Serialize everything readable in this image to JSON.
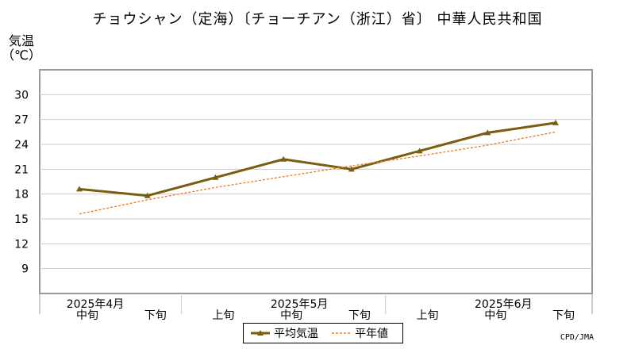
{
  "header": {
    "title": "チョウシャン（定海）〔チョーチアン（浙江）省〕 中華人民共和国"
  },
  "axes": {
    "ylabel_line1": "気温",
    "ylabel_line2": "（℃）"
  },
  "footer": {
    "credit": "CPD/JMA"
  },
  "legend": {
    "avg_label": "平均気温",
    "normal_label": "平年値"
  },
  "colors": {
    "avg_line": "#7a5d10",
    "normal_line": "#f07a1e",
    "grid": "#cccccc",
    "frame": "#999999"
  },
  "chart_data": {
    "type": "line",
    "ylim": [
      6,
      33
    ],
    "yticks": [
      9,
      12,
      15,
      18,
      21,
      24,
      27,
      30
    ],
    "categories": [
      "中旬",
      "下旬",
      "上旬",
      "中旬",
      "下旬",
      "上旬",
      "中旬",
      "下旬"
    ],
    "month_labels": [
      {
        "label": "2025年4月",
        "index": 0
      },
      {
        "label": "2025年5月",
        "index": 3
      },
      {
        "label": "2025年6月",
        "index": 6
      }
    ],
    "grid": true,
    "legend_position": "bottom-center",
    "series": [
      {
        "name": "平均気温",
        "style": "solid-marker",
        "values": [
          18.6,
          17.8,
          20.0,
          22.2,
          21.0,
          23.2,
          25.4,
          26.6
        ]
      },
      {
        "name": "平年値",
        "style": "dashed",
        "values": [
          15.6,
          17.3,
          18.8,
          20.1,
          21.4,
          22.6,
          23.9,
          25.5
        ]
      }
    ]
  }
}
